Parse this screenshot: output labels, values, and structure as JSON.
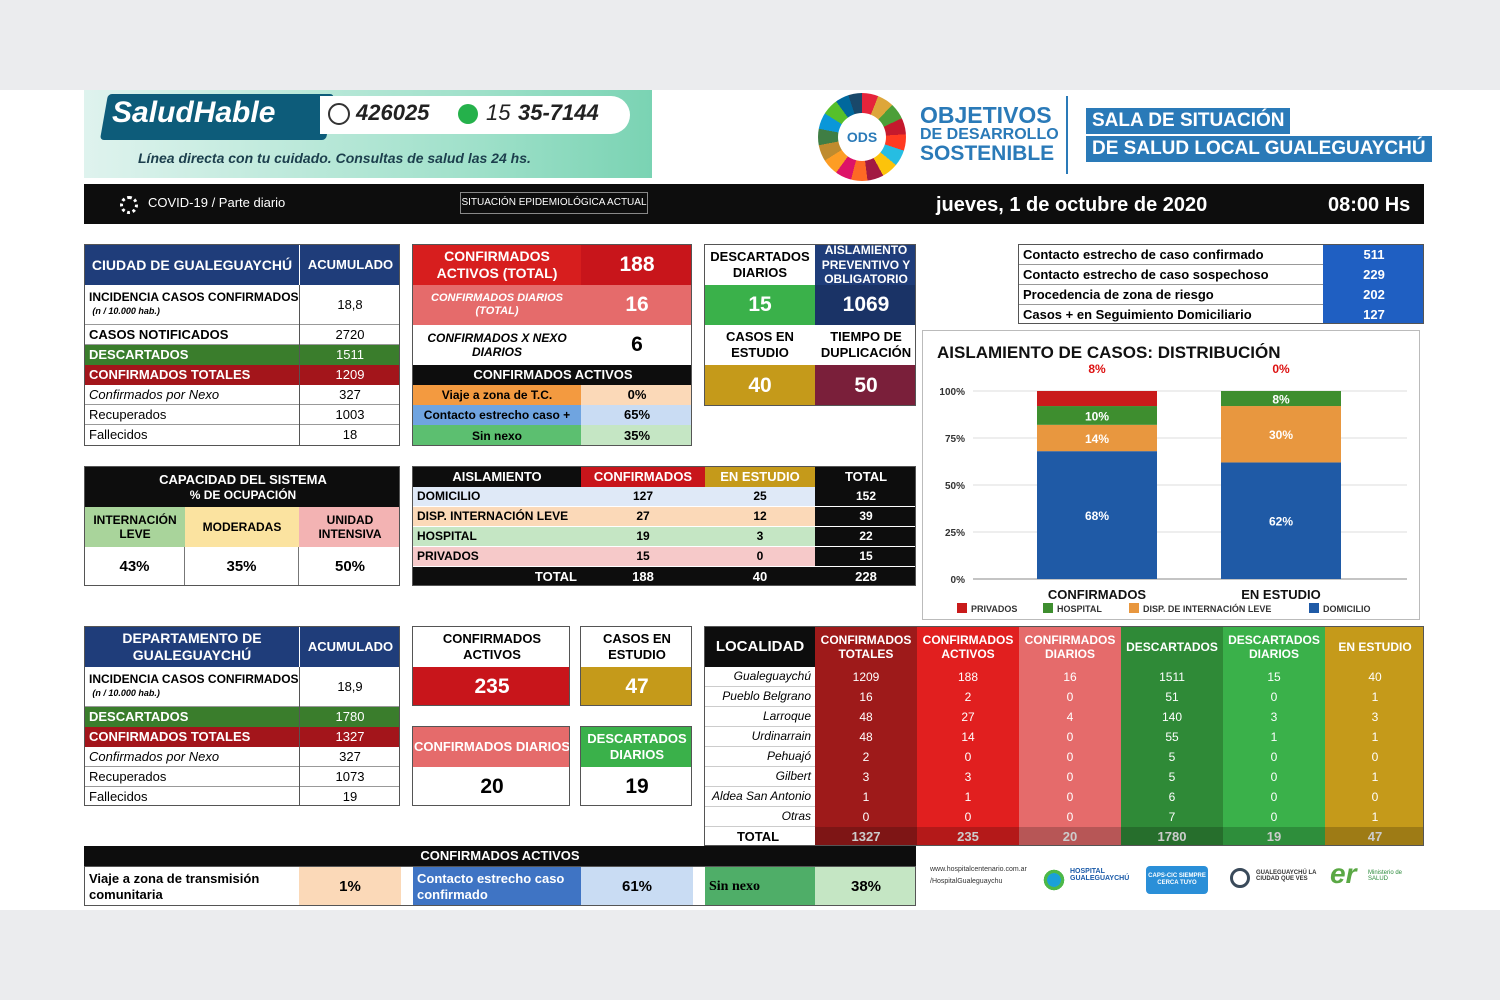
{
  "header": {
    "brand_left": "Salud",
    "brand_right": "Hable",
    "phone1": "426025",
    "phone2_prefix": "15",
    "phone2": "35-7144",
    "tagline": "Línea directa con tu cuidado. Consultas de salud las 24 hs.",
    "ods_badge": "ODS",
    "ods_line1": "OBJETIVOS",
    "ods_line2": "DE DESARROLLO",
    "ods_line3": "SOSTENIBLE",
    "sala_line1": "SALA DE SITUACIÓN",
    "sala_line2": "DE SALUD LOCAL GUALEGUAYCHÚ"
  },
  "topbar": {
    "covid": "COVID-19 / Parte diario",
    "situacion": "SITUACIÓN EPIDEMIOLÓGICA ACTUAL",
    "date": "jueves, 1 de octubre de 2020",
    "time": "08:00 Hs"
  },
  "ciudad": {
    "title": "CIUDAD DE GUALEGUAYCHÚ",
    "acum": "ACUMULADO",
    "rows": [
      {
        "label": "INCIDENCIA CASOS CONFIRMADOS",
        "note": "(n / 10.000 hab.)",
        "value": "18,8"
      },
      {
        "label": "CASOS NOTIFICADOS",
        "value": "2720"
      },
      {
        "label": "DESCARTADOS",
        "value": "1511"
      },
      {
        "label": "CONFIRMADOS TOTALES",
        "value": "1209"
      },
      {
        "label": "Confirmados por Nexo",
        "value": "327"
      },
      {
        "label": "Recuperados",
        "value": "1003"
      },
      {
        "label": "Fallecidos",
        "value": "18"
      }
    ]
  },
  "confirmados_box": {
    "activos_label": "CONFIRMADOS ACTIVOS (TOTAL)",
    "activos_value": "188",
    "diarios_label": "CONFIRMADOS DIARIOS (TOTAL)",
    "diarios_value": "16",
    "nexo_label": "CONFIRMADOS X NEXO DIARIOS",
    "nexo_value": "6",
    "activos_header": "CONFIRMADOS ACTIVOS",
    "breakdown": [
      {
        "label": "Viaje a zona de T.C.",
        "value": "0%"
      },
      {
        "label": "Contacto estrecho caso +",
        "value": "65%"
      },
      {
        "label": "Sin nexo",
        "value": "35%"
      }
    ]
  },
  "descartados_diarios": {
    "label": "DESCARTADOS DIARIOS",
    "value": "15"
  },
  "aislamiento_obl": {
    "label": "AISLAMIENTO PREVENTIVO Y OBLIGATORIO",
    "value": "1069"
  },
  "casos_estudio": {
    "label": "CASOS EN ESTUDIO",
    "value": "40"
  },
  "tiempo_dup": {
    "label": "TIEMPO DE DUPLICACIÓN",
    "value": "50"
  },
  "contactos": [
    {
      "label": "Contacto estrecho de caso confirmado",
      "value": "511"
    },
    {
      "label": "Contacto estrecho de caso sospechoso",
      "value": "229"
    },
    {
      "label": "Procedencia de zona de riesgo",
      "value": "202"
    },
    {
      "label": "Casos + en Seguimiento Domiciliario",
      "value": "127"
    }
  ],
  "capacidad": {
    "title": "CAPACIDAD DEL SISTEMA",
    "subtitle": "% DE OCUPACIÓN",
    "cols": [
      {
        "label": "INTERNACIÓN LEVE",
        "value": "43%"
      },
      {
        "label": "MODERADAS",
        "value": "35%"
      },
      {
        "label": "UNIDAD INTENSIVA",
        "value": "50%"
      }
    ]
  },
  "aislamiento_table": {
    "headers": [
      "AISLAMIENTO",
      "CONFIRMADOS",
      "EN ESTUDIO",
      "TOTAL"
    ],
    "rows": [
      {
        "label": "DOMICILIO",
        "c": "127",
        "e": "25",
        "t": "152"
      },
      {
        "label": "DISP. INTERNACIÓN LEVE",
        "c": "27",
        "e": "12",
        "t": "39"
      },
      {
        "label": "HOSPITAL",
        "c": "19",
        "e": "3",
        "t": "22"
      },
      {
        "label": "PRIVADOS",
        "c": "15",
        "e": "0",
        "t": "15"
      }
    ],
    "total_label": "TOTAL",
    "total_c": "188",
    "total_e": "40",
    "total_t": "228"
  },
  "chart_data": {
    "type": "bar",
    "stacked": true,
    "percent": true,
    "title": "AISLAMIENTO DE CASOS: DISTRIBUCIÓN",
    "categories": [
      "CONFIRMADOS",
      "EN ESTUDIO"
    ],
    "ylim": [
      0,
      100
    ],
    "yticks": [
      "0%",
      "25%",
      "50%",
      "75%",
      "100%"
    ],
    "series": [
      {
        "name": "DOMICILIO",
        "color": "#1f5aa6",
        "values": [
          68,
          62
        ],
        "labels": [
          "68%",
          "62%"
        ]
      },
      {
        "name": "DISP. DE INTERNACIÓN LEVE",
        "color": "#e8973f",
        "values": [
          14,
          30
        ],
        "labels": [
          "14%",
          "30%"
        ]
      },
      {
        "name": "HOSPITAL",
        "color": "#3e8e2f",
        "values": [
          10,
          8
        ],
        "labels": [
          "10%",
          "8%"
        ]
      },
      {
        "name": "PRIVADOS",
        "color": "#c91b1b",
        "values": [
          8,
          0
        ],
        "labels": [
          "8%",
          "0%"
        ]
      }
    ],
    "legend_order": [
      "PRIVADOS",
      "HOSPITAL",
      "DISP. DE INTERNACIÓN LEVE",
      "DOMICILIO"
    ],
    "legend": "bottom"
  },
  "departamento": {
    "title": "DEPARTAMENTO DE GUALEGUAYCHÚ",
    "acum": "ACUMULADO",
    "rows": [
      {
        "label": "INCIDENCIA CASOS CONFIRMADOS",
        "note": "(n / 10.000 hab.)",
        "value": "18,9"
      },
      {
        "label": "DESCARTADOS",
        "value": "1780"
      },
      {
        "label": "CONFIRMADOS TOTALES",
        "value": "1327"
      },
      {
        "label": "Confirmados por Nexo",
        "value": "327"
      },
      {
        "label": "Recuperados",
        "value": "1073"
      },
      {
        "label": "Fallecidos",
        "value": "19"
      }
    ]
  },
  "dep_boxes": {
    "activos_label": "CONFIRMADOS ACTIVOS",
    "activos_value": "235",
    "estudio_label": "CASOS EN ESTUDIO",
    "estudio_value": "47",
    "diarios_label": "CONFIRMADOS DIARIOS",
    "diarios_value": "20",
    "descartados_label": "DESCARTADOS DIARIOS",
    "descartados_value": "19"
  },
  "localidad": {
    "headers": [
      "LOCALIDAD",
      "CONFIRMADOS TOTALES",
      "CONFIRMADOS ACTIVOS",
      "CONFIRMADOS DIARIOS",
      "DESCARTADOS",
      "DESCARTADOS DIARIOS",
      "EN ESTUDIO"
    ],
    "rows": [
      {
        "name": "Gualeguaychú",
        "v": [
          "1209",
          "188",
          "16",
          "1511",
          "15",
          "40"
        ]
      },
      {
        "name": "Pueblo Belgrano",
        "v": [
          "16",
          "2",
          "0",
          "51",
          "0",
          "1"
        ]
      },
      {
        "name": "Larroque",
        "v": [
          "48",
          "27",
          "4",
          "140",
          "3",
          "3"
        ]
      },
      {
        "name": "Urdinarrain",
        "v": [
          "48",
          "14",
          "0",
          "55",
          "1",
          "1"
        ]
      },
      {
        "name": "Pehuajó",
        "v": [
          "2",
          "0",
          "0",
          "5",
          "0",
          "0"
        ]
      },
      {
        "name": "Gilbert",
        "v": [
          "3",
          "3",
          "0",
          "5",
          "0",
          "1"
        ]
      },
      {
        "name": "Aldea San Antonio",
        "v": [
          "1",
          "1",
          "0",
          "6",
          "0",
          "0"
        ]
      },
      {
        "name": "Otras",
        "v": [
          "0",
          "0",
          "0",
          "7",
          "0",
          "1"
        ]
      }
    ],
    "total_label": "TOTAL",
    "totals": [
      "1327",
      "235",
      "20",
      "1780",
      "19",
      "47"
    ]
  },
  "dep_activos": {
    "header": "CONFIRMADOS ACTIVOS",
    "viaje_label": "Viaje a zona de transmisión comunitaria",
    "viaje_value": "1%",
    "contacto_label": "Contacto estrecho caso confirmado",
    "contacto_value": "61%",
    "sinnexo_label": "Sin nexo",
    "sinnexo_value": "38%"
  },
  "footer": {
    "web": "www.hospitalcentenario.com.ar",
    "fb": "/HospitalGualeguaychu",
    "logo1": "HOSPITAL GUALEGUAYCHÚ",
    "logo2": "CAPS-CIC SIEMPRE CERCA TUYO",
    "logo3": "GUALEGUAYCHÚ LA CIUDAD QUE VES",
    "logo4": "Ministerio de SALUD"
  },
  "colors": {
    "navy": "#1f3d7a",
    "red": "#c8151b",
    "green": "#3a7d2c",
    "gold": "#c59a1a",
    "maroon": "#7a1f3a"
  }
}
